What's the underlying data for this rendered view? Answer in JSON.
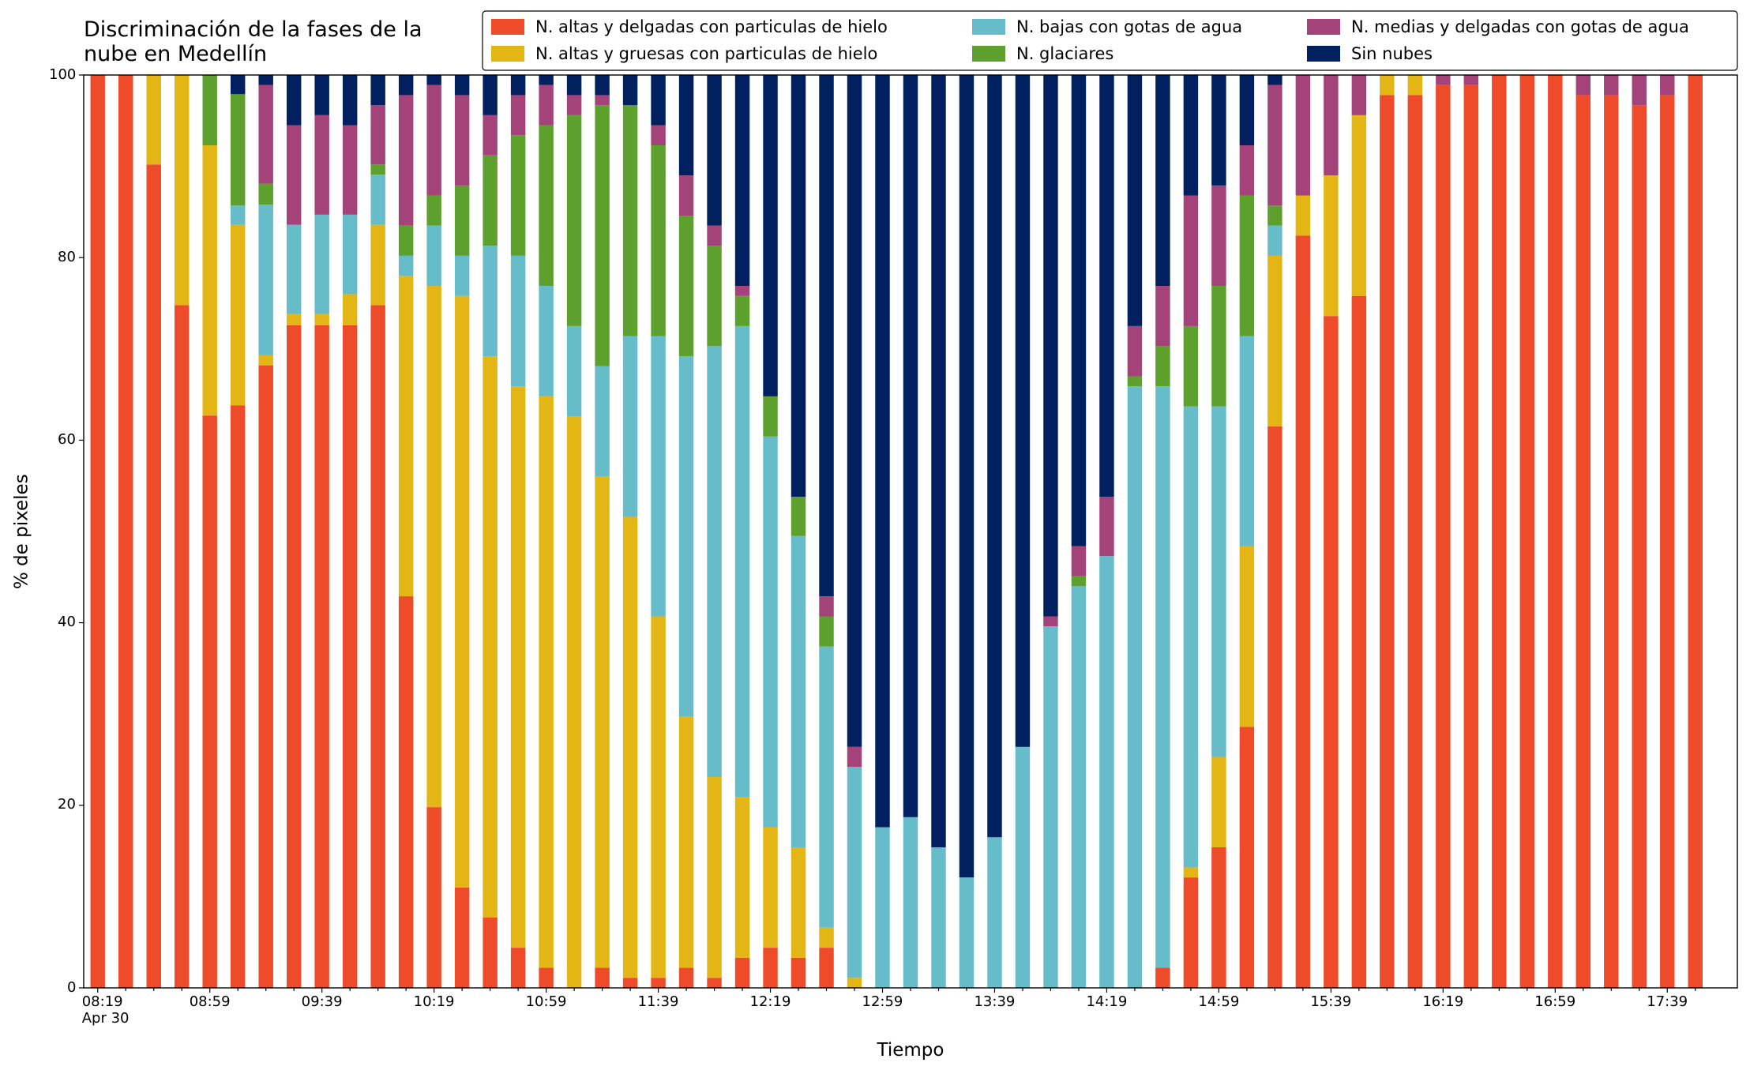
{
  "chart_data": {
    "type": "stacked_bar",
    "title": "Discriminación de la fases de la\nnube en Medellín",
    "xlabel": "Tiempo",
    "ylabel": "% de pixeles",
    "categories": [
      "08:19\nApr 30",
      null,
      null,
      null,
      "08:59",
      null,
      null,
      null,
      "09:39",
      null,
      null,
      null,
      "10:19",
      null,
      null,
      null,
      "10:59",
      null,
      null,
      null,
      "11:39",
      null,
      null,
      null,
      "12:19",
      null,
      null,
      null,
      "12:59",
      null,
      null,
      null,
      "13:39",
      null,
      null,
      null,
      "14:19",
      null,
      null,
      null,
      "14:59",
      null,
      null,
      null,
      "15:39",
      null,
      null,
      null,
      "16:19",
      null,
      null,
      null,
      "16:59",
      null,
      null,
      null,
      "17:39",
      null
    ],
    "series": [
      {
        "name": "N. altas y delgadas con particulas de hielo",
        "color": "#ee4b2b",
        "values": [
          100,
          100,
          90.2,
          74.8,
          62.7,
          63.8,
          68.2,
          72.6,
          72.6,
          72.6,
          74.8,
          42.9,
          19.8,
          11.0,
          7.7,
          4.4,
          2.2,
          0,
          2.2,
          1.1,
          1.1,
          2.2,
          1.1,
          3.3,
          4.4,
          3.3,
          4.4,
          0,
          0,
          0,
          0,
          0,
          0,
          0,
          0,
          0,
          0,
          0,
          2.2,
          12.1,
          15.4,
          28.6,
          61.5,
          82.4,
          73.6,
          75.8,
          97.8,
          97.8,
          98.9,
          98.9,
          100,
          100,
          100,
          97.8,
          97.8,
          96.7,
          97.8,
          100
        ]
      },
      {
        "name": "N. altas y gruesas con particulas de hielo",
        "color": "#e4b615",
        "values": [
          0,
          0,
          9.8,
          25.2,
          29.6,
          19.8,
          1.1,
          1.2,
          1.2,
          3.4,
          8.8,
          35.1,
          57.1,
          64.8,
          61.5,
          61.5,
          62.6,
          62.6,
          53.8,
          50.5,
          39.6,
          27.5,
          22.0,
          17.6,
          13.2,
          12.1,
          2.2,
          1.1,
          0,
          0,
          0,
          0,
          0,
          0,
          0,
          0,
          0,
          0,
          0,
          1.1,
          9.9,
          19.8,
          18.7,
          4.4,
          15.4,
          19.8,
          2.2,
          2.2,
          0,
          0,
          0,
          0,
          0,
          0,
          0,
          0,
          0,
          0
        ]
      },
      {
        "name": "N. bajas con gotas de agua",
        "color": "#66bdc9",
        "values": [
          0,
          0,
          0,
          0,
          0,
          2.1,
          16.5,
          9.8,
          10.9,
          8.7,
          5.5,
          2.2,
          6.6,
          4.4,
          12.1,
          14.3,
          12.1,
          9.9,
          12.1,
          19.8,
          30.7,
          39.5,
          47.2,
          51.6,
          42.8,
          34.1,
          30.8,
          23.1,
          17.6,
          18.7,
          15.4,
          12.1,
          16.5,
          26.4,
          39.6,
          44.0,
          47.3,
          65.9,
          63.7,
          50.5,
          38.4,
          23.0,
          3.3,
          0,
          0,
          0,
          0,
          0,
          0,
          0,
          0,
          0,
          0,
          0,
          0,
          0,
          0,
          0
        ]
      },
      {
        "name": "N. glaciares",
        "color": "#5da02e",
        "values": [
          0,
          0,
          0,
          0,
          7.7,
          12.2,
          2.3,
          0,
          0,
          0,
          1.1,
          3.3,
          3.3,
          7.7,
          9.9,
          13.2,
          17.6,
          23.1,
          28.6,
          25.3,
          20.9,
          15.4,
          11.0,
          3.3,
          4.4,
          4.3,
          3.3,
          0,
          0,
          0,
          0,
          0,
          0,
          0,
          0,
          1.1,
          0,
          1.1,
          4.4,
          8.8,
          13.2,
          15.4,
          2.2,
          0,
          0,
          0,
          0,
          0,
          0,
          0,
          0,
          0,
          0,
          0,
          0,
          0,
          0,
          0
        ]
      },
      {
        "name": "N. medias y delgadas con gotas de agua",
        "color": "#a4437a",
        "values": [
          0,
          0,
          0,
          0,
          0,
          0,
          10.8,
          10.9,
          10.9,
          9.8,
          6.5,
          14.3,
          12.1,
          9.9,
          4.4,
          4.4,
          4.4,
          2.2,
          1.1,
          0,
          2.2,
          4.4,
          2.2,
          1.1,
          0,
          0,
          2.2,
          2.2,
          0,
          0,
          0,
          0,
          0,
          0,
          1.1,
          3.3,
          6.5,
          5.5,
          6.6,
          14.3,
          11.0,
          5.5,
          13.2,
          13.2,
          11.0,
          4.4,
          0,
          0,
          1.1,
          1.1,
          0,
          0,
          0,
          2.2,
          2.2,
          3.3,
          2.2,
          0
        ]
      },
      {
        "name": "Sin nubes",
        "color": "#00205f",
        "values": [
          0,
          0,
          0,
          0,
          0,
          2.1,
          1.1,
          5.5,
          4.4,
          5.5,
          3.3,
          2.2,
          1.1,
          2.2,
          4.4,
          2.2,
          1.1,
          2.2,
          2.2,
          3.3,
          5.5,
          11.0,
          16.5,
          23.1,
          35.2,
          46.2,
          57.1,
          73.6,
          82.4,
          81.3,
          84.6,
          87.9,
          83.5,
          73.6,
          59.3,
          51.6,
          46.2,
          27.5,
          23.1,
          13.2,
          12.1,
          7.7,
          1.1,
          0,
          0,
          0,
          0,
          0,
          0,
          0,
          0,
          0,
          0,
          0,
          0,
          0,
          0,
          0
        ]
      }
    ],
    "ylim": [
      0,
      100
    ],
    "yticks": [
      0,
      20,
      40,
      60,
      80,
      100
    ],
    "legend_loc": "upper right",
    "grid": false
  }
}
